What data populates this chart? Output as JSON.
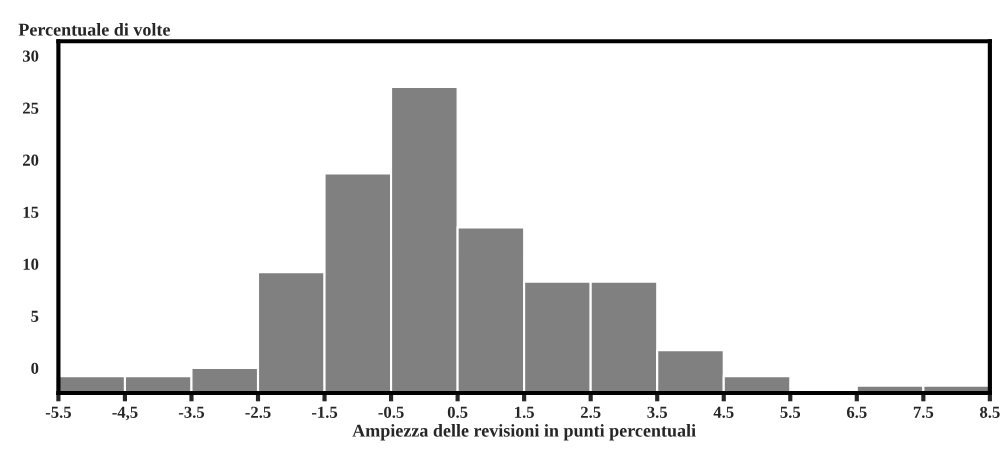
{
  "chart_data": {
    "type": "histogram",
    "ylabel": "Percentuale di volte",
    "xlabel": "Ampiezza delle revisioni in punti percentuali",
    "bins": [
      -5.5,
      -4.5,
      -3.5,
      -2.5,
      -1.5,
      -0.5,
      0.5,
      1.5,
      2.5,
      3.5,
      4.5,
      5.5,
      6.5,
      7.5,
      8.5
    ],
    "values": [
      1.6,
      1.6,
      2.4,
      11.6,
      21.1,
      29.4,
      15.9,
      10.7,
      10.7,
      4.1,
      1.6,
      null,
      0.7,
      0.7
    ],
    "base": [
      -2.4,
      -2.4,
      -2.4,
      -2.4,
      -2.4,
      -2.4,
      -2.4,
      -2.4,
      -2.4,
      -2.4,
      -2.4,
      null,
      -2.4,
      -2.4
    ],
    "color": "#808080",
    "xlim": [
      -5.5,
      8.5
    ],
    "xticks": [
      -5.5,
      {
        "value": -4.5,
        "label": "-4,5"
      },
      -3.5,
      -2.5,
      -1.5,
      -0.5,
      0.5,
      1.5,
      2.5,
      3.5,
      4.5,
      5.5,
      6.5,
      7.5,
      8.5
    ],
    "ylim": [
      -2.4,
      31.4
    ],
    "yticks": [
      0,
      5,
      10,
      15,
      20,
      25,
      30
    ],
    "grid": false,
    "legend": false
  }
}
